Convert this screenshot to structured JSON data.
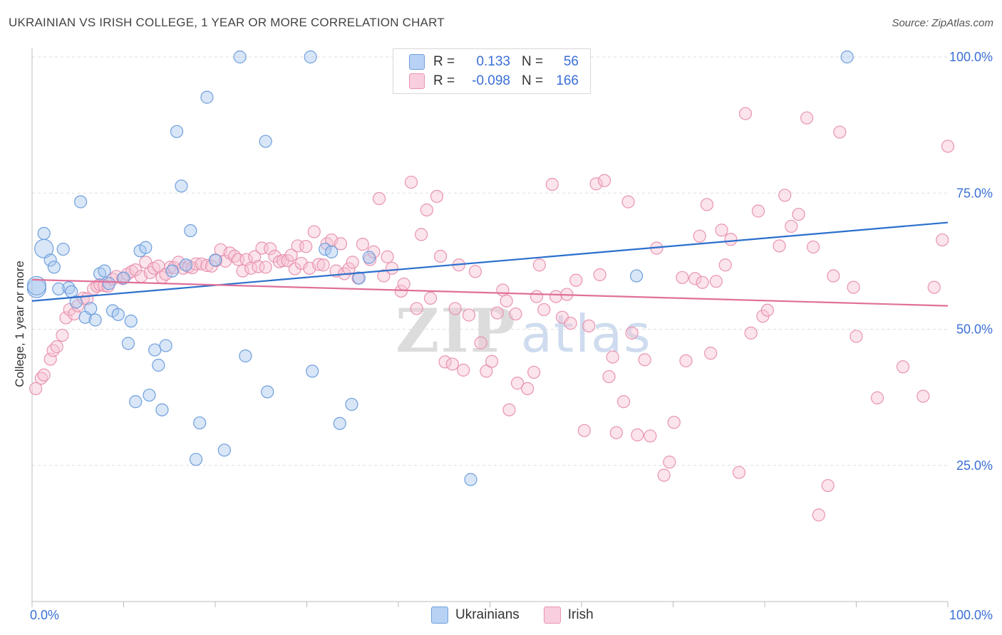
{
  "header": {
    "title": "UKRAINIAN VS IRISH COLLEGE, 1 YEAR OR MORE CORRELATION CHART",
    "source": "Source: ZipAtlas.com"
  },
  "legend": {
    "rows": [
      {
        "r_label": "R =",
        "r_value": "0.133",
        "n_label": "N =",
        "n_value": "56"
      },
      {
        "r_label": "R =",
        "r_value": "-0.098",
        "n_label": "N =",
        "n_value": "166"
      }
    ]
  },
  "watermark": {
    "zip": "ZIP",
    "atlas": "atlas"
  },
  "chart_data": {
    "type": "scatter",
    "title": "UKRAINIAN VS IRISH COLLEGE, 1 YEAR OR MORE CORRELATION CHART",
    "xlabel": "",
    "ylabel": "College, 1 year or more",
    "xlim": [
      0,
      100
    ],
    "ylim": [
      0,
      100
    ],
    "x_tick_labels": [
      "0.0%",
      "100.0%"
    ],
    "y_tick_labels": [
      "25.0%",
      "50.0%",
      "75.0%",
      "100.0%"
    ],
    "y_ticks": [
      25,
      50,
      75,
      100
    ],
    "grid": "horizontal dashed",
    "legend_placement": "bottom-center",
    "series": [
      {
        "name": "Ukrainians",
        "color": "#a9c8f0",
        "stroke": "#6f9fdc",
        "line_color": "#2b6fcc",
        "trend": {
          "x": [
            0,
            100
          ],
          "y": [
            55.2,
            69.6
          ]
        },
        "points": [
          [
            0.5,
            57.5
          ],
          [
            1.3,
            64.8
          ],
          [
            1.3,
            67.6
          ],
          [
            2.0,
            62.7
          ],
          [
            2.4,
            61.4
          ],
          [
            2.9,
            57.4
          ],
          [
            3.4,
            64.7
          ],
          [
            4.0,
            57.6
          ],
          [
            4.3,
            56.9
          ],
          [
            4.8,
            55.0
          ],
          [
            5.3,
            73.4
          ],
          [
            5.8,
            52.2
          ],
          [
            6.4,
            53.8
          ],
          [
            6.9,
            51.7
          ],
          [
            7.4,
            60.2
          ],
          [
            7.9,
            60.7
          ],
          [
            8.4,
            58.4
          ],
          [
            8.8,
            53.4
          ],
          [
            9.4,
            52.7
          ],
          [
            10.0,
            59.4
          ],
          [
            10.5,
            47.4
          ],
          [
            10.8,
            51.5
          ],
          [
            11.3,
            36.7
          ],
          [
            11.8,
            64.4
          ],
          [
            12.4,
            65.0
          ],
          [
            12.8,
            37.9
          ],
          [
            13.4,
            46.2
          ],
          [
            13.8,
            43.4
          ],
          [
            14.2,
            35.2
          ],
          [
            14.6,
            47.0
          ],
          [
            15.3,
            60.7
          ],
          [
            15.8,
            86.3
          ],
          [
            16.3,
            76.3
          ],
          [
            16.8,
            61.8
          ],
          [
            17.3,
            68.1
          ],
          [
            17.9,
            26.1
          ],
          [
            18.3,
            32.8
          ],
          [
            19.1,
            92.6
          ],
          [
            20.0,
            62.7
          ],
          [
            21.0,
            27.8
          ],
          [
            22.7,
            100.0
          ],
          [
            23.3,
            45.1
          ],
          [
            25.5,
            84.5
          ],
          [
            25.7,
            38.5
          ],
          [
            30.4,
            100.0
          ],
          [
            30.6,
            42.3
          ],
          [
            32.0,
            64.7
          ],
          [
            32.7,
            64.2
          ],
          [
            33.6,
            32.7
          ],
          [
            34.9,
            36.2
          ],
          [
            35.7,
            59.4
          ],
          [
            36.8,
            63.2
          ],
          [
            47.9,
            22.4
          ],
          [
            66.0,
            59.8
          ],
          [
            89.0,
            100.0
          ],
          [
            0.5,
            58.0
          ]
        ]
      },
      {
        "name": "Irish",
        "color": "#f6c3d3",
        "stroke": "#e894b0",
        "line_color": "#e0709a",
        "trend": {
          "x": [
            0,
            100
          ],
          "y": [
            59.1,
            54.3
          ]
        },
        "points": [
          [
            0.4,
            39.1
          ],
          [
            1.0,
            41.0
          ],
          [
            1.3,
            41.6
          ],
          [
            2.0,
            44.5
          ],
          [
            2.3,
            46.1
          ],
          [
            2.7,
            46.8
          ],
          [
            3.3,
            48.9
          ],
          [
            3.7,
            52.1
          ],
          [
            4.1,
            53.6
          ],
          [
            4.6,
            52.8
          ],
          [
            5.0,
            54.3
          ],
          [
            5.6,
            55.7
          ],
          [
            6.0,
            55.6
          ],
          [
            6.7,
            57.4
          ],
          [
            7.1,
            57.9
          ],
          [
            7.4,
            58.2
          ],
          [
            7.9,
            58.0
          ],
          [
            8.3,
            57.9
          ],
          [
            8.8,
            59.2
          ],
          [
            9.2,
            59.7
          ],
          [
            9.9,
            59.3
          ],
          [
            10.4,
            60.1
          ],
          [
            10.9,
            60.6
          ],
          [
            11.3,
            60.9
          ],
          [
            11.9,
            59.7
          ],
          [
            12.4,
            62.3
          ],
          [
            12.9,
            60.4
          ],
          [
            13.3,
            61.2
          ],
          [
            13.8,
            61.6
          ],
          [
            14.2,
            59.5
          ],
          [
            14.6,
            60.1
          ],
          [
            15.1,
            61.4
          ],
          [
            15.5,
            61.3
          ],
          [
            16.0,
            62.3
          ],
          [
            16.5,
            61.2
          ],
          [
            17.1,
            61.5
          ],
          [
            17.5,
            61.3
          ],
          [
            17.9,
            62.0
          ],
          [
            18.5,
            62.0
          ],
          [
            19.1,
            61.7
          ],
          [
            19.6,
            61.6
          ],
          [
            20.1,
            62.6
          ],
          [
            20.6,
            64.6
          ],
          [
            21.1,
            62.5
          ],
          [
            21.6,
            64.0
          ],
          [
            22.1,
            63.4
          ],
          [
            22.5,
            62.8
          ],
          [
            23.0,
            60.7
          ],
          [
            23.4,
            62.8
          ],
          [
            23.9,
            61.2
          ],
          [
            24.3,
            63.3
          ],
          [
            24.7,
            61.5
          ],
          [
            25.1,
            64.9
          ],
          [
            25.5,
            61.4
          ],
          [
            26.0,
            64.8
          ],
          [
            26.5,
            63.4
          ],
          [
            27.0,
            62.4
          ],
          [
            27.4,
            62.6
          ],
          [
            27.9,
            62.6
          ],
          [
            28.3,
            63.6
          ],
          [
            28.7,
            61.1
          ],
          [
            29.0,
            65.3
          ],
          [
            29.4,
            62.1
          ],
          [
            29.9,
            65.2
          ],
          [
            30.3,
            61.2
          ],
          [
            30.8,
            67.9
          ],
          [
            31.3,
            61.9
          ],
          [
            31.8,
            61.8
          ],
          [
            32.2,
            65.7
          ],
          [
            32.7,
            66.4
          ],
          [
            33.2,
            60.7
          ],
          [
            33.7,
            65.7
          ],
          [
            34.1,
            60.2
          ],
          [
            34.6,
            61.1
          ],
          [
            35.0,
            62.3
          ],
          [
            35.6,
            59.4
          ],
          [
            36.1,
            65.6
          ],
          [
            36.9,
            62.8
          ],
          [
            37.3,
            64.2
          ],
          [
            37.9,
            74.0
          ],
          [
            38.4,
            59.8
          ],
          [
            38.8,
            63.3
          ],
          [
            39.3,
            61.2
          ],
          [
            40.3,
            57.0
          ],
          [
            40.6,
            58.3
          ],
          [
            41.4,
            77.0
          ],
          [
            42.0,
            53.8
          ],
          [
            42.5,
            67.4
          ],
          [
            43.1,
            71.9
          ],
          [
            43.5,
            55.7
          ],
          [
            44.2,
            74.4
          ],
          [
            44.6,
            63.4
          ],
          [
            45.1,
            44.0
          ],
          [
            45.9,
            43.6
          ],
          [
            46.2,
            53.8
          ],
          [
            46.6,
            61.8
          ],
          [
            47.1,
            42.5
          ],
          [
            47.7,
            52.6
          ],
          [
            48.4,
            60.6
          ],
          [
            49.0,
            47.5
          ],
          [
            49.6,
            42.3
          ],
          [
            50.2,
            44.1
          ],
          [
            50.8,
            53.0
          ],
          [
            51.4,
            57.2
          ],
          [
            51.8,
            55.2
          ],
          [
            52.1,
            35.2
          ],
          [
            52.8,
            52.8
          ],
          [
            53.0,
            40.1
          ],
          [
            54.1,
            39.1
          ],
          [
            54.8,
            42.1
          ],
          [
            55.1,
            56.0
          ],
          [
            55.4,
            61.8
          ],
          [
            55.9,
            53.6
          ],
          [
            56.8,
            76.6
          ],
          [
            57.2,
            56.0
          ],
          [
            57.9,
            52.2
          ],
          [
            58.4,
            56.4
          ],
          [
            58.8,
            51.1
          ],
          [
            59.4,
            59.0
          ],
          [
            60.3,
            31.4
          ],
          [
            60.8,
            50.6
          ],
          [
            61.6,
            76.7
          ],
          [
            62.0,
            60.0
          ],
          [
            62.5,
            77.3
          ],
          [
            63.0,
            41.3
          ],
          [
            63.4,
            44.9
          ],
          [
            63.8,
            31.0
          ],
          [
            64.6,
            36.7
          ],
          [
            65.1,
            73.4
          ],
          [
            65.5,
            49.3
          ],
          [
            66.1,
            30.6
          ],
          [
            66.9,
            44.4
          ],
          [
            67.5,
            30.4
          ],
          [
            68.2,
            64.9
          ],
          [
            69.0,
            23.2
          ],
          [
            69.6,
            25.6
          ],
          [
            70.1,
            32.9
          ],
          [
            71.0,
            59.5
          ],
          [
            71.4,
            44.2
          ],
          [
            72.4,
            59.3
          ],
          [
            72.9,
            67.1
          ],
          [
            73.2,
            58.6
          ],
          [
            73.7,
            72.9
          ],
          [
            74.1,
            45.6
          ],
          [
            74.7,
            58.8
          ],
          [
            75.3,
            68.2
          ],
          [
            75.7,
            61.8
          ],
          [
            76.3,
            66.5
          ],
          [
            77.2,
            23.7
          ],
          [
            77.9,
            89.6
          ],
          [
            78.5,
            49.3
          ],
          [
            79.3,
            71.7
          ],
          [
            79.8,
            52.4
          ],
          [
            80.3,
            53.5
          ],
          [
            81.6,
            65.3
          ],
          [
            82.2,
            74.6
          ],
          [
            82.9,
            68.9
          ],
          [
            83.7,
            71.1
          ],
          [
            84.6,
            88.8
          ],
          [
            85.3,
            65.1
          ],
          [
            85.9,
            15.9
          ],
          [
            86.9,
            21.3
          ],
          [
            87.5,
            59.8
          ],
          [
            88.2,
            86.2
          ],
          [
            89.7,
            57.7
          ],
          [
            90.0,
            48.7
          ],
          [
            92.3,
            37.4
          ],
          [
            95.1,
            43.1
          ],
          [
            97.3,
            37.7
          ],
          [
            98.5,
            57.7
          ],
          [
            99.4,
            66.4
          ],
          [
            100.0,
            83.6
          ]
        ]
      }
    ]
  }
}
